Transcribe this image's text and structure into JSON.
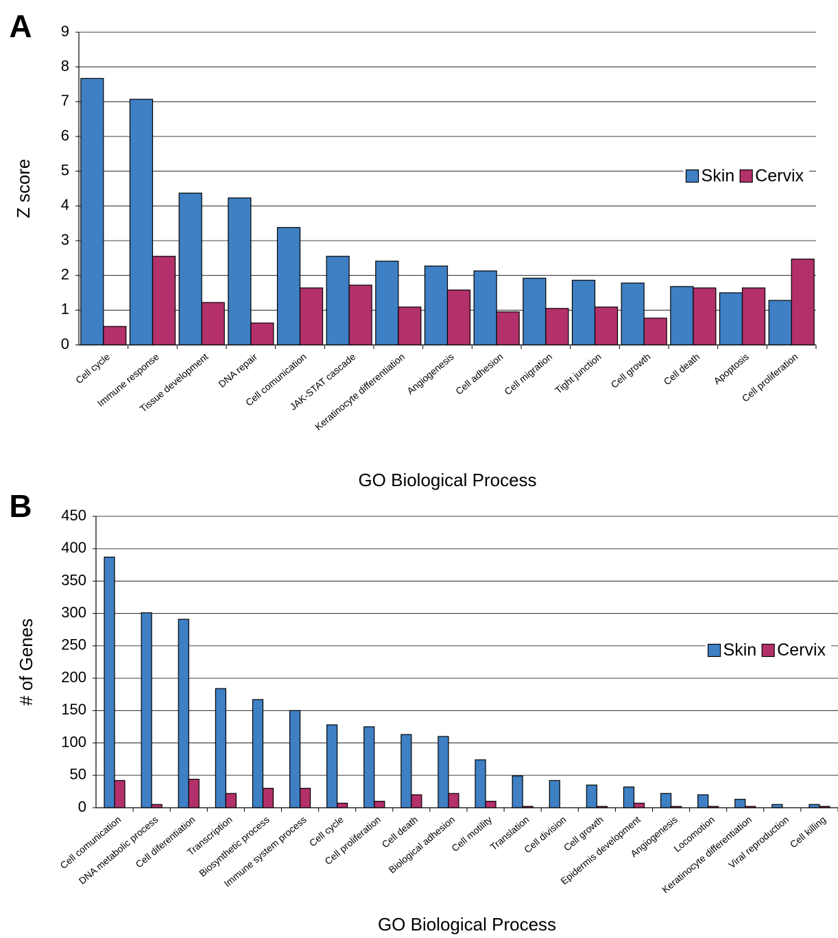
{
  "chart_data": [
    {
      "type": "bar",
      "panel": "A",
      "x_label": "GO Biological Process",
      "y_label": "Z score",
      "categories": [
        "Cell cycle",
        "Immune response",
        "Tissue development",
        "DNA repair",
        "Cell comunication",
        "JAK-STAT cascade",
        "Keratinocyte differentiation",
        "Angiogenesis",
        "Cell adhesion",
        "Cell migration",
        "Tight junction",
        "Cell growth",
        "Cell death",
        "Apoptosis",
        "Cell proliferation"
      ],
      "series": [
        {
          "name": "Skin",
          "color": "#3f7fc4",
          "values": [
            7.67,
            7.07,
            4.37,
            4.23,
            3.38,
            2.55,
            2.41,
            2.27,
            2.13,
            1.92,
            1.86,
            1.78,
            1.68,
            1.5,
            1.28
          ]
        },
        {
          "name": "Cervix",
          "color": "#b3306a",
          "values": [
            0.53,
            2.55,
            1.22,
            0.63,
            1.64,
            1.72,
            1.09,
            1.58,
            0.95,
            1.05,
            1.09,
            0.77,
            1.64,
            1.64,
            2.47
          ]
        }
      ],
      "ylim": [
        0,
        9
      ],
      "yticks": [
        0,
        1,
        2,
        3,
        4,
        5,
        6,
        7,
        8,
        9
      ],
      "grid": true,
      "legend": "right"
    },
    {
      "type": "bar",
      "panel": "B",
      "x_label": "GO Biological Process",
      "y_label": "# of Genes",
      "categories": [
        "Cell comunication",
        "DNA metabolic process",
        "Cell diferentiation",
        "Transcription",
        "Biosynthetic process",
        "Immune system process",
        "Cell cycle",
        "Cell proliferation",
        "Cell death",
        "Biological adhesion",
        "Cell motility",
        "Translation",
        "Cell division",
        "Cell growth",
        "Epidermis development",
        "Angiogenesis",
        "Locomotion",
        "Keratinocyte differentiation",
        "Viral reproduction",
        "Cell killing"
      ],
      "series": [
        {
          "name": "Skin",
          "color": "#3f7fc4",
          "values": [
            387,
            301,
            291,
            184,
            167,
            150,
            128,
            125,
            113,
            110,
            74,
            49,
            42,
            35,
            32,
            22,
            20,
            13,
            5,
            5
          ]
        },
        {
          "name": "Cervix",
          "color": "#b3306a",
          "values": [
            42,
            5,
            44,
            22,
            30,
            30,
            7,
            10,
            20,
            22,
            10,
            2,
            0,
            2,
            7,
            2,
            2,
            2,
            0,
            2
          ]
        }
      ],
      "ylim": [
        0,
        450
      ],
      "yticks": [
        0,
        50,
        100,
        150,
        200,
        250,
        300,
        350,
        400,
        450
      ],
      "grid": true,
      "legend": "right"
    }
  ]
}
